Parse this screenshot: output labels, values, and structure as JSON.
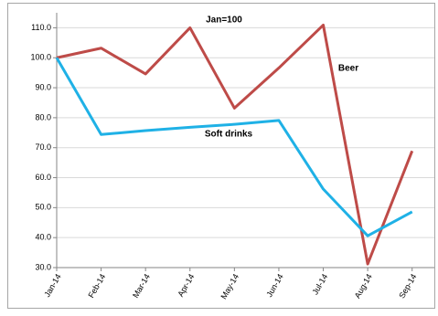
{
  "chart_data": {
    "type": "line",
    "title": "Jan=100",
    "categories": [
      "Jan-14",
      "Feb-14",
      "Mar-14",
      "Apr-14",
      "May-14",
      "Jun-14",
      "Jul-14",
      "Aug-14",
      "Sep-14"
    ],
    "series": [
      {
        "name": "Beer",
        "color": "#be4b48",
        "values": [
          100,
          103.2,
          94.6,
          110,
          83.2,
          96.6,
          110.9,
          31.2,
          68.9
        ]
      },
      {
        "name": "Soft drinks",
        "color": "#1fb1e6",
        "values": [
          100,
          74.4,
          75.7,
          76.8,
          77.8,
          79.1,
          56.2,
          40.6,
          48.6
        ]
      }
    ],
    "ylim": [
      30,
      115
    ],
    "yticks": [
      {
        "value": 30,
        "label": "30.0"
      },
      {
        "value": 40,
        "label": "40.0"
      },
      {
        "value": 50,
        "label": "50.0"
      },
      {
        "value": 60,
        "label": "60.0"
      },
      {
        "value": 70,
        "label": "70.0"
      },
      {
        "value": 80,
        "label": "80.0"
      },
      {
        "value": 90,
        "label": "90.0"
      },
      {
        "value": 100,
        "label": "100.0"
      },
      {
        "value": 110,
        "label": "110.0"
      }
    ],
    "grid": true
  }
}
